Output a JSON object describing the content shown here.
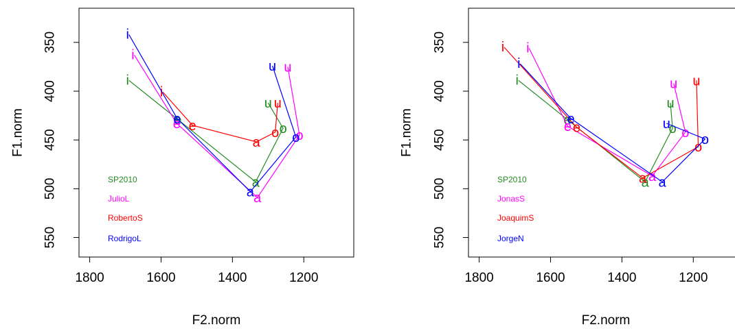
{
  "chart_data": [
    {
      "type": "line",
      "xlabel": "F2.norm",
      "ylabel": "F1.norm",
      "xlim": [
        1830,
        1060
      ],
      "ylim": [
        570,
        315
      ],
      "x_ticks": [
        1800,
        1600,
        1400,
        1200
      ],
      "x_tick_labels": [
        "1800",
        "1600",
        "1400",
        "1200"
      ],
      "y_ticks": [
        350,
        400,
        450,
        500,
        550
      ],
      "y_tick_labels": [
        "350",
        "400",
        "450",
        "500",
        "550"
      ],
      "grid": false,
      "legend_position": "bottom-left",
      "vowel_order": [
        "i",
        "e",
        "a",
        "o",
        "u"
      ],
      "series": [
        {
          "name": "SP2010",
          "color": "#228B22",
          "points": [
            {
              "vowel": "i",
              "x": 1690,
              "y": 389
            },
            {
              "vowel": "e",
              "x": 1553,
              "y": 429
            },
            {
              "vowel": "a",
              "x": 1335,
              "y": 493
            },
            {
              "vowel": "o",
              "x": 1258,
              "y": 438
            },
            {
              "vowel": "u",
              "x": 1300,
              "y": 412
            }
          ]
        },
        {
          "name": "JulioL",
          "color": "#FF00FF",
          "points": [
            {
              "vowel": "i",
              "x": 1675,
              "y": 363
            },
            {
              "vowel": "e",
              "x": 1556,
              "y": 433
            },
            {
              "vowel": "a",
              "x": 1330,
              "y": 509
            },
            {
              "vowel": "o",
              "x": 1212,
              "y": 445
            },
            {
              "vowel": "u",
              "x": 1245,
              "y": 375
            }
          ]
        },
        {
          "name": "RobertoS",
          "color": "#FF0000",
          "points": [
            {
              "vowel": "i",
              "x": 1595,
              "y": 401
            },
            {
              "vowel": "e",
              "x": 1512,
              "y": 435
            },
            {
              "vowel": "a",
              "x": 1333,
              "y": 452
            },
            {
              "vowel": "o",
              "x": 1280,
              "y": 442
            },
            {
              "vowel": "u",
              "x": 1273,
              "y": 412
            }
          ]
        },
        {
          "name": "RodrigoL",
          "color": "#0000FF",
          "points": [
            {
              "vowel": "i",
              "x": 1690,
              "y": 342
            },
            {
              "vowel": "e",
              "x": 1555,
              "y": 428
            },
            {
              "vowel": "a",
              "x": 1350,
              "y": 503
            },
            {
              "vowel": "o",
              "x": 1222,
              "y": 447
            },
            {
              "vowel": "u",
              "x": 1288,
              "y": 374
            }
          ]
        }
      ]
    },
    {
      "type": "line",
      "xlabel": "F2.norm",
      "ylabel": "F1.norm",
      "xlim": [
        1830,
        1060
      ],
      "ylim": [
        570,
        315
      ],
      "x_ticks": [
        1800,
        1600,
        1400,
        1200
      ],
      "x_tick_labels": [
        "1800",
        "1600",
        "1400",
        "1200"
      ],
      "y_ticks": [
        350,
        400,
        450,
        500,
        550
      ],
      "y_tick_labels": [
        "350",
        "400",
        "450",
        "500",
        "550"
      ],
      "grid": false,
      "legend_position": "bottom-left",
      "vowel_order": [
        "i",
        "e",
        "a",
        "o",
        "u"
      ],
      "series": [
        {
          "name": "SP2010",
          "color": "#228B22",
          "points": [
            {
              "vowel": "i",
              "x": 1690,
              "y": 389
            },
            {
              "vowel": "e",
              "x": 1553,
              "y": 429
            },
            {
              "vowel": "a",
              "x": 1335,
              "y": 493
            },
            {
              "vowel": "o",
              "x": 1258,
              "y": 438
            },
            {
              "vowel": "u",
              "x": 1264,
              "y": 412
            }
          ]
        },
        {
          "name": "JonasS",
          "color": "#FF00FF",
          "points": [
            {
              "vowel": "i",
              "x": 1660,
              "y": 356
            },
            {
              "vowel": "e",
              "x": 1552,
              "y": 436
            },
            {
              "vowel": "a",
              "x": 1315,
              "y": 487
            },
            {
              "vowel": "o",
              "x": 1222,
              "y": 442
            },
            {
              "vowel": "u",
              "x": 1255,
              "y": 392
            }
          ]
        },
        {
          "name": "JoaquimS",
          "color": "#FF0000",
          "points": [
            {
              "vowel": "i",
              "x": 1730,
              "y": 355
            },
            {
              "vowel": "e",
              "x": 1527,
              "y": 437
            },
            {
              "vowel": "a",
              "x": 1342,
              "y": 489
            },
            {
              "vowel": "o",
              "x": 1186,
              "y": 457
            },
            {
              "vowel": "u",
              "x": 1191,
              "y": 389
            }
          ]
        },
        {
          "name": "JorgeN",
          "color": "#0000FF",
          "points": [
            {
              "vowel": "i",
              "x": 1685,
              "y": 372
            },
            {
              "vowel": "e",
              "x": 1543,
              "y": 428
            },
            {
              "vowel": "a",
              "x": 1287,
              "y": 493
            },
            {
              "vowel": "o",
              "x": 1167,
              "y": 449
            },
            {
              "vowel": "u",
              "x": 1275,
              "y": 433
            }
          ]
        }
      ]
    }
  ]
}
